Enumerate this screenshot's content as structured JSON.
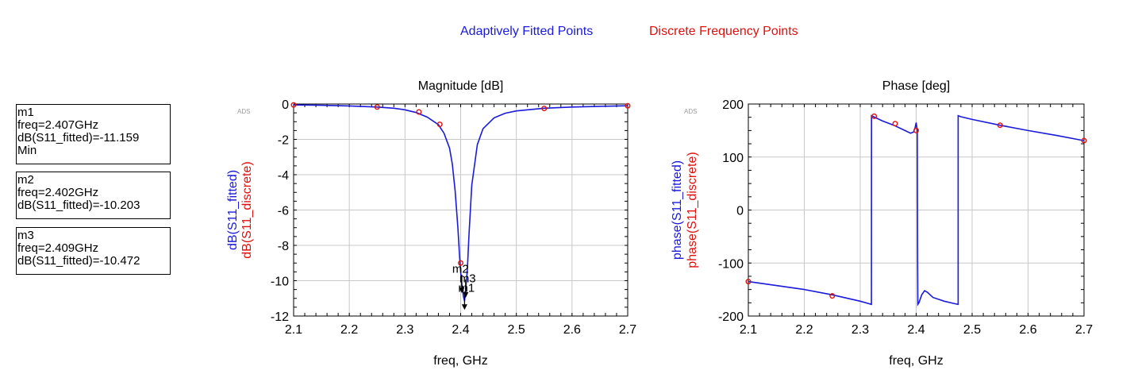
{
  "legend": [
    {
      "label": "Adaptively Fitted Points",
      "color": "#1a1adb"
    },
    {
      "label": "Discrete Frequency Points",
      "color": "#e01010"
    }
  ],
  "markers": [
    {
      "lines": [
        "m1",
        "freq=2.407GHz",
        "dB(S11_fitted)=-11.159",
        "Min"
      ]
    },
    {
      "lines": [
        "m2",
        "freq=2.402GHz",
        "dB(S11_fitted)=-10.203"
      ]
    },
    {
      "lines": [
        "m3",
        "freq=2.409GHz",
        "dB(S11_fitted)=-10.472"
      ]
    }
  ],
  "ads_tag": "ADS",
  "chart_data": [
    {
      "type": "line",
      "title": "Magnitude [dB]",
      "xlabel": "freq, GHz",
      "ylabel_series": [
        "dB(S11_fitted)",
        "dB(S11_discrete)"
      ],
      "xlim": [
        2.1,
        2.7
      ],
      "ylim": [
        -12,
        0
      ],
      "xticks": [
        "2.1",
        "2.2",
        "2.3",
        "2.4",
        "2.5",
        "2.6",
        "2.7"
      ],
      "yticks": [
        "0",
        "-2",
        "-4",
        "-6",
        "-8",
        "-10",
        "-12"
      ],
      "grid": true,
      "series": [
        {
          "name": "dB(S11_fitted)",
          "color": "#1a1adb",
          "x": [
            2.1,
            2.15,
            2.2,
            2.25,
            2.28,
            2.3,
            2.32,
            2.34,
            2.36,
            2.37,
            2.38,
            2.385,
            2.39,
            2.395,
            2.398,
            2.4,
            2.402,
            2.405,
            2.407,
            2.409,
            2.412,
            2.415,
            2.42,
            2.43,
            2.44,
            2.46,
            2.48,
            2.5,
            2.55,
            2.6,
            2.65,
            2.7
          ],
          "y": [
            -0.05,
            -0.07,
            -0.11,
            -0.17,
            -0.24,
            -0.33,
            -0.48,
            -0.74,
            -1.17,
            -1.65,
            -2.5,
            -3.4,
            -4.9,
            -7.0,
            -8.6,
            -9.5,
            -10.2,
            -10.9,
            -11.159,
            -10.5,
            -9.4,
            -7.4,
            -4.6,
            -2.3,
            -1.4,
            -0.78,
            -0.52,
            -0.39,
            -0.24,
            -0.17,
            -0.13,
            -0.1
          ]
        },
        {
          "name": "dB(S11_discrete)",
          "color": "#e01010",
          "style": "points",
          "x": [
            2.1,
            2.25,
            2.325,
            2.3625,
            2.4,
            2.55,
            2.7
          ],
          "y": [
            -0.05,
            -0.17,
            -0.45,
            -1.15,
            -9.0,
            -0.25,
            -0.1
          ]
        }
      ],
      "annotations": [
        {
          "label": "m2",
          "x": 2.402,
          "y": -10.203
        },
        {
          "label": "m3",
          "x": 2.409,
          "y": -10.472
        },
        {
          "label": "m1",
          "x": 2.407,
          "y": -11.159
        }
      ]
    },
    {
      "type": "line",
      "title": "Phase [deg]",
      "xlabel": "freq, GHz",
      "ylabel_series": [
        "phase(S11_fitted)",
        "phase(S11_discrete)"
      ],
      "xlim": [
        2.1,
        2.7
      ],
      "ylim": [
        -200,
        200
      ],
      "xticks": [
        "2.1",
        "2.2",
        "2.3",
        "2.4",
        "2.5",
        "2.6",
        "2.7"
      ],
      "yticks": [
        "200",
        "100",
        "0",
        "-100",
        "-200"
      ],
      "grid": true,
      "series": [
        {
          "name": "phase(S11_fitted)",
          "color": "#1a1adb",
          "x": [
            2.1,
            2.2,
            2.25,
            2.3,
            2.32,
            2.3201,
            2.322,
            2.34,
            2.36,
            2.38,
            2.39,
            2.395,
            2.398,
            2.4,
            2.402,
            2.4025,
            2.403,
            2.405,
            2.41,
            2.415,
            2.42,
            2.43,
            2.45,
            2.47,
            2.475,
            2.4751,
            2.48,
            2.5,
            2.55,
            2.6,
            2.65,
            2.7
          ],
          "y": [
            -135,
            -150,
            -160,
            -172,
            -178,
            178,
            177,
            168,
            160,
            150,
            145,
            147,
            155,
            165,
            150,
            -100,
            -178,
            -175,
            -160,
            -152,
            -155,
            -165,
            -172,
            -177,
            -178,
            178,
            176,
            171,
            160,
            150,
            141,
            131
          ]
        },
        {
          "name": "phase(S11_discrete)",
          "color": "#e01010",
          "style": "points",
          "x": [
            2.1,
            2.25,
            2.325,
            2.3625,
            2.4,
            2.55,
            2.7
          ],
          "y": [
            -135,
            -162,
            177,
            163,
            150,
            160,
            131
          ]
        }
      ]
    }
  ]
}
